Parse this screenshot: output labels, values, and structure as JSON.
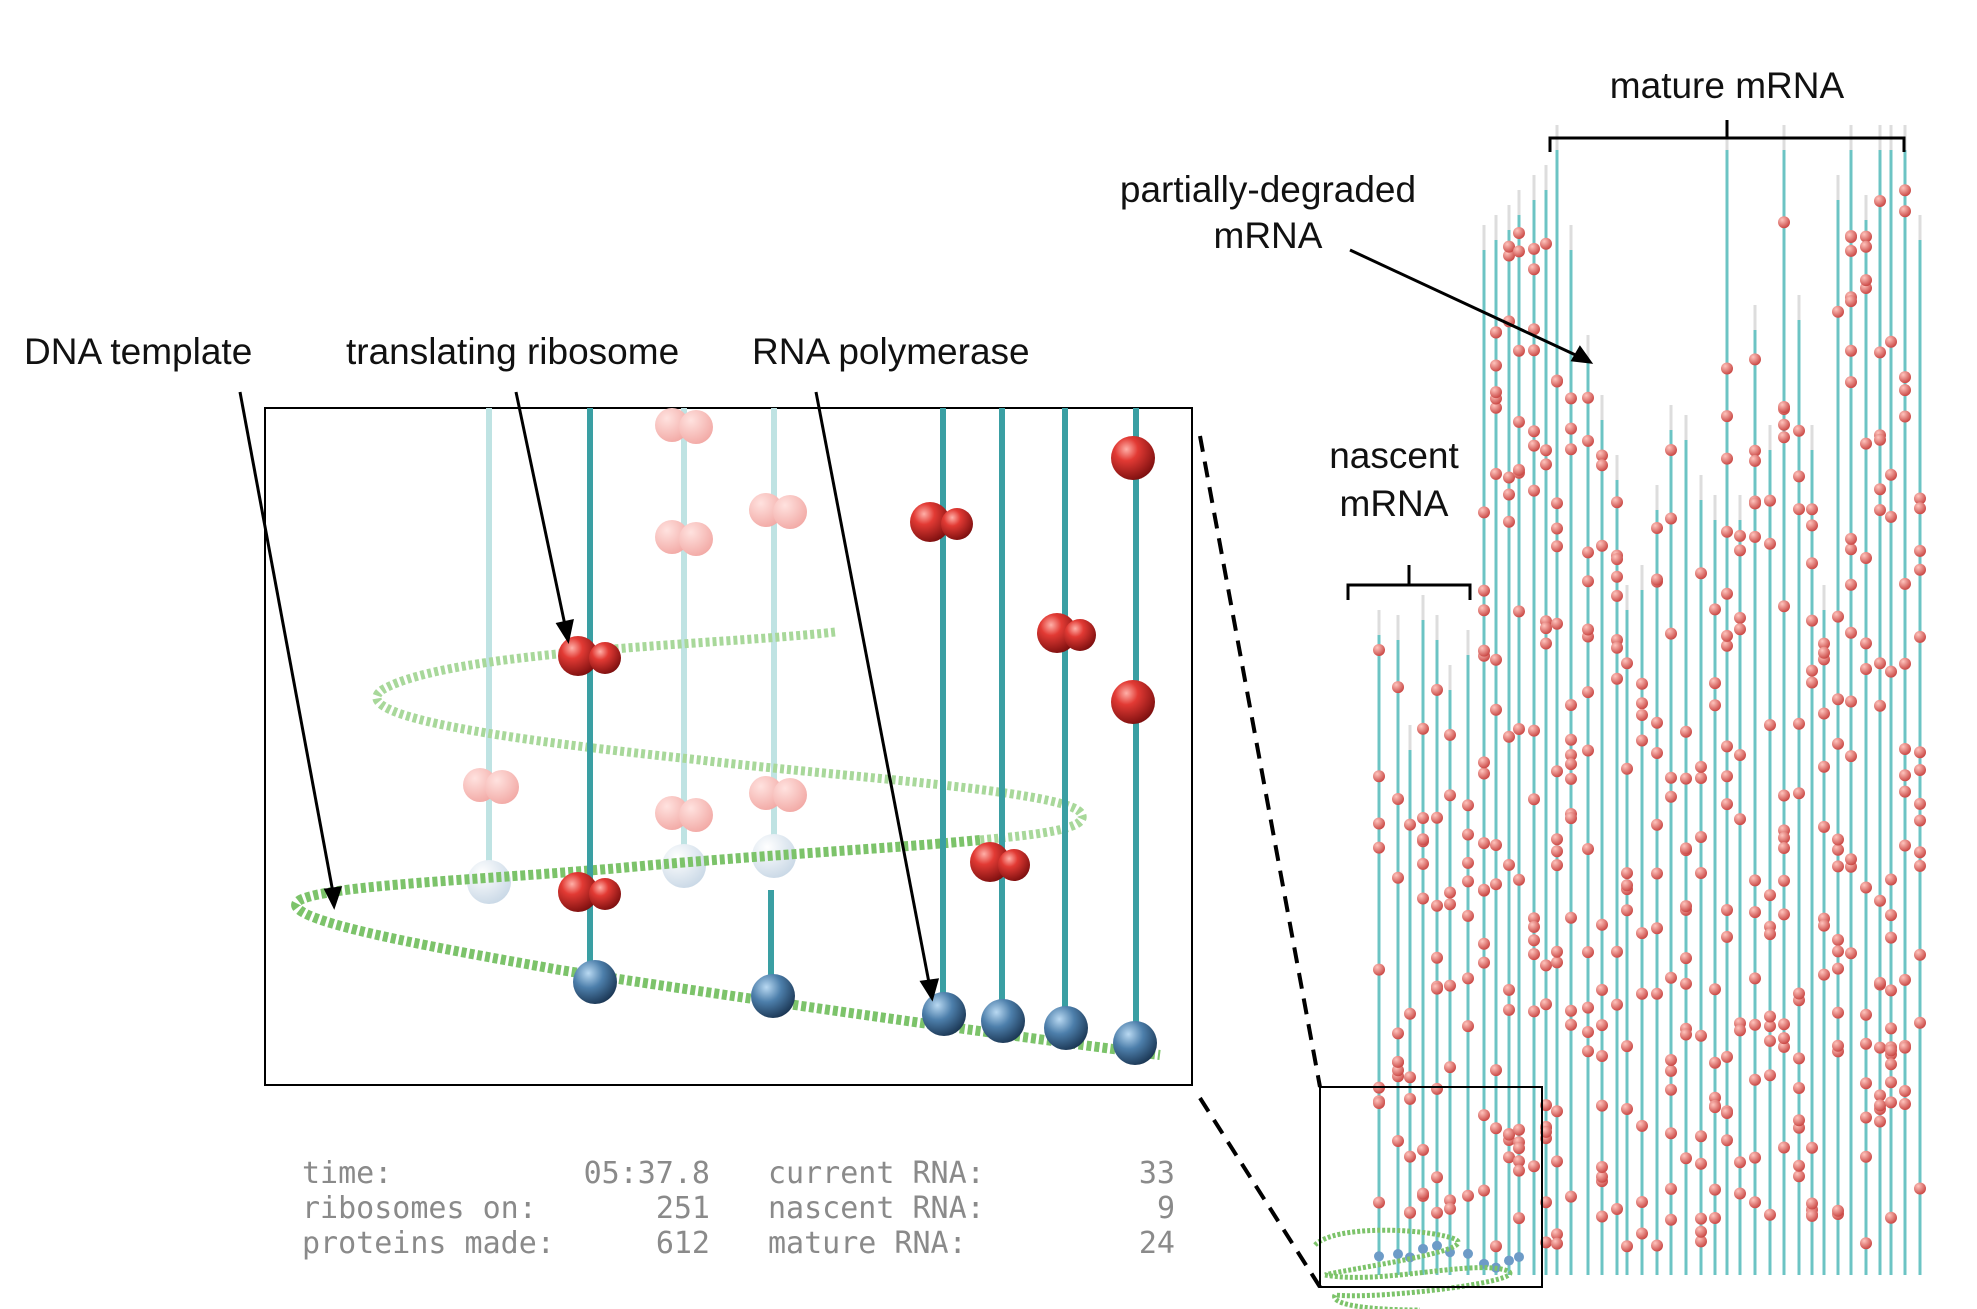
{
  "labels": {
    "dna_template": "DNA template",
    "translating_ribosome": "translating ribosome",
    "rna_polymerase": "RNA polymerase",
    "partially_degraded_line1": "partially-degraded",
    "partially_degraded_line2": "mRNA",
    "mature_mrna": "mature mRNA",
    "nascent_line1": "nascent",
    "nascent_line2": "mRNA"
  },
  "stats": {
    "time_label": "time:",
    "time_value": "05:37.8",
    "ribosomes_label": "ribosomes on:",
    "ribosomes_value": "251",
    "proteins_label": "proteins made:",
    "proteins_value": "612",
    "current_label": "current RNA:",
    "current_value": "33",
    "nascent_label": "nascent RNA:",
    "nascent_value": "9",
    "mature_label": "mature RNA:",
    "mature_value": "24"
  },
  "colors": {
    "dna": "#7cc36a",
    "mrna": "#3a9fa3",
    "ribosome": "#d8302d",
    "polymerase": "#4a7fae",
    "text": "#111111",
    "stats_text": "#8a8a8a"
  },
  "icons": {
    "ribosome": "ribosome-icon",
    "polymerase": "polymerase-icon",
    "dna": "dna-helix"
  }
}
